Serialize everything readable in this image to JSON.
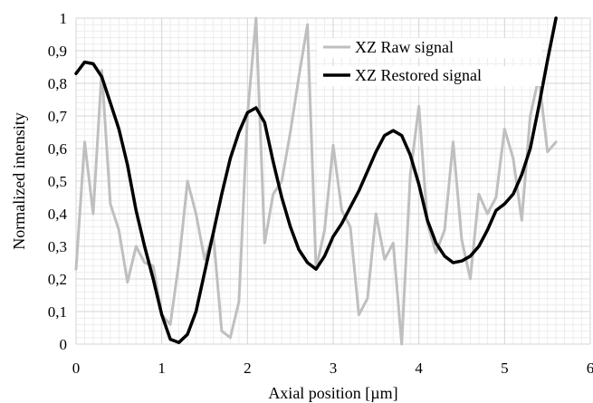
{
  "chart_data": {
    "type": "line",
    "title": "",
    "xlabel": "Axial position [µm]",
    "ylabel": "Normalized intensity",
    "xlim": [
      0,
      6
    ],
    "ylim": [
      0,
      1
    ],
    "x_ticks": [
      "0",
      "1",
      "2",
      "3",
      "4",
      "5",
      "6"
    ],
    "y_ticks": [
      "0",
      "0,1",
      "0,2",
      "0,3",
      "0,4",
      "0,5",
      "0,6",
      "0,7",
      "0,8",
      "0,9",
      "1"
    ],
    "grid": true,
    "legend": "top-right",
    "series": [
      {
        "name": "XZ Raw signal",
        "color": "#bfbfbf",
        "x": [
          0,
          0.1,
          0.2,
          0.3,
          0.4,
          0.5,
          0.6,
          0.7,
          0.8,
          0.9,
          1.0,
          1.1,
          1.2,
          1.3,
          1.4,
          1.5,
          1.6,
          1.7,
          1.8,
          1.9,
          2.0,
          2.1,
          2.2,
          2.3,
          2.4,
          2.5,
          2.6,
          2.7,
          2.8,
          2.9,
          3.0,
          3.1,
          3.2,
          3.3,
          3.4,
          3.5,
          3.6,
          3.7,
          3.8,
          3.9,
          4.0,
          4.1,
          4.2,
          4.3,
          4.4,
          4.5,
          4.6,
          4.7,
          4.8,
          4.9,
          5.0,
          5.1,
          5.2,
          5.3,
          5.4,
          5.5,
          5.6
        ],
        "y": [
          0.23,
          0.62,
          0.4,
          0.84,
          0.43,
          0.35,
          0.19,
          0.3,
          0.25,
          0.24,
          0.09,
          0.06,
          0.25,
          0.5,
          0.4,
          0.26,
          0.34,
          0.04,
          0.02,
          0.13,
          0.7,
          1.0,
          0.31,
          0.46,
          0.5,
          0.65,
          0.82,
          0.98,
          0.23,
          0.35,
          0.61,
          0.41,
          0.36,
          0.09,
          0.14,
          0.4,
          0.26,
          0.31,
          0.0,
          0.52,
          0.73,
          0.37,
          0.28,
          0.35,
          0.62,
          0.32,
          0.2,
          0.46,
          0.4,
          0.45,
          0.66,
          0.57,
          0.38,
          0.7,
          0.82,
          0.59,
          0.62
        ]
      },
      {
        "name": "XZ Restored signal",
        "color": "#000000",
        "x": [
          0,
          0.1,
          0.2,
          0.3,
          0.4,
          0.5,
          0.6,
          0.7,
          0.8,
          0.9,
          1.0,
          1.1,
          1.2,
          1.3,
          1.4,
          1.5,
          1.6,
          1.7,
          1.8,
          1.9,
          2.0,
          2.1,
          2.2,
          2.3,
          2.4,
          2.5,
          2.6,
          2.7,
          2.8,
          2.9,
          3.0,
          3.1,
          3.2,
          3.3,
          3.4,
          3.5,
          3.6,
          3.7,
          3.8,
          3.9,
          4.0,
          4.1,
          4.2,
          4.3,
          4.4,
          4.5,
          4.6,
          4.7,
          4.8,
          4.9,
          5.0,
          5.1,
          5.2,
          5.3,
          5.4,
          5.5,
          5.6
        ],
        "y": [
          0.83,
          0.865,
          0.86,
          0.82,
          0.74,
          0.66,
          0.55,
          0.41,
          0.3,
          0.2,
          0.09,
          0.015,
          0.005,
          0.03,
          0.1,
          0.22,
          0.34,
          0.46,
          0.57,
          0.65,
          0.71,
          0.725,
          0.68,
          0.56,
          0.45,
          0.36,
          0.29,
          0.25,
          0.23,
          0.27,
          0.33,
          0.37,
          0.42,
          0.47,
          0.53,
          0.59,
          0.64,
          0.655,
          0.64,
          0.58,
          0.49,
          0.38,
          0.31,
          0.27,
          0.25,
          0.255,
          0.27,
          0.3,
          0.35,
          0.41,
          0.43,
          0.46,
          0.52,
          0.6,
          0.73,
          0.87,
          1.0
        ]
      }
    ]
  }
}
